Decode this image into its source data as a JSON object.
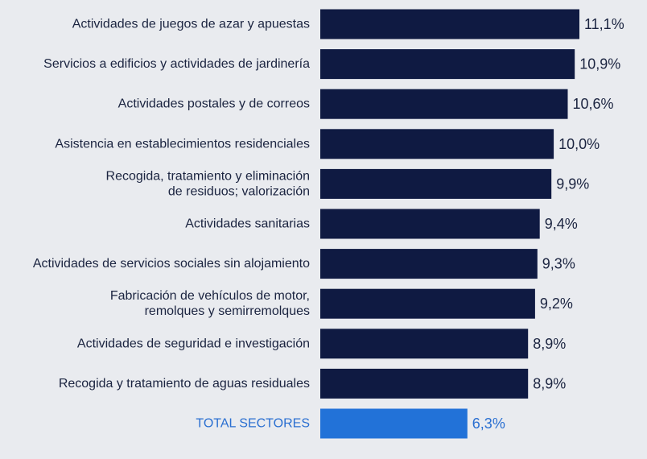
{
  "chart_data": {
    "type": "bar",
    "orientation": "horizontal",
    "title": "",
    "xlabel": "",
    "ylabel": "",
    "grid": false,
    "xlim": [
      0,
      11.1
    ],
    "categories": [
      [
        "Actividades de juegos de azar y apuestas"
      ],
      [
        "Servicios a edificios y actividades de jardinería"
      ],
      [
        "Actividades postales y de correos"
      ],
      [
        "Asistencia en establecimientos residenciales"
      ],
      [
        "Recogida, tratamiento y eliminación",
        "de residuos; valorización"
      ],
      [
        "Actividades sanitarias"
      ],
      [
        "Actividades de servicios sociales sin alojamiento"
      ],
      [
        "Fabricación de vehículos de motor,",
        "remolques y semirremolques"
      ],
      [
        "Actividades de seguridad e investigación"
      ],
      [
        "Recogida y tratamiento de aguas residuales"
      ],
      [
        "TOTAL SECTORES"
      ]
    ],
    "values": [
      11.1,
      10.9,
      10.6,
      10.0,
      9.9,
      9.4,
      9.3,
      9.2,
      8.9,
      8.9,
      6.3
    ],
    "value_labels": [
      "11,1%",
      "10,9%",
      "10,6%",
      "10,0%",
      "9,9%",
      "9,4%",
      "9,3%",
      "9,2%",
      "8,9%",
      "8,9%",
      "6,3%"
    ],
    "highlight_index": 10,
    "colors": {
      "bar": "#0f1a42",
      "highlight_bar": "#2272d8",
      "label": "#1b2440",
      "highlight_label": "#2a6fd1",
      "background": "#e9ebef"
    }
  }
}
